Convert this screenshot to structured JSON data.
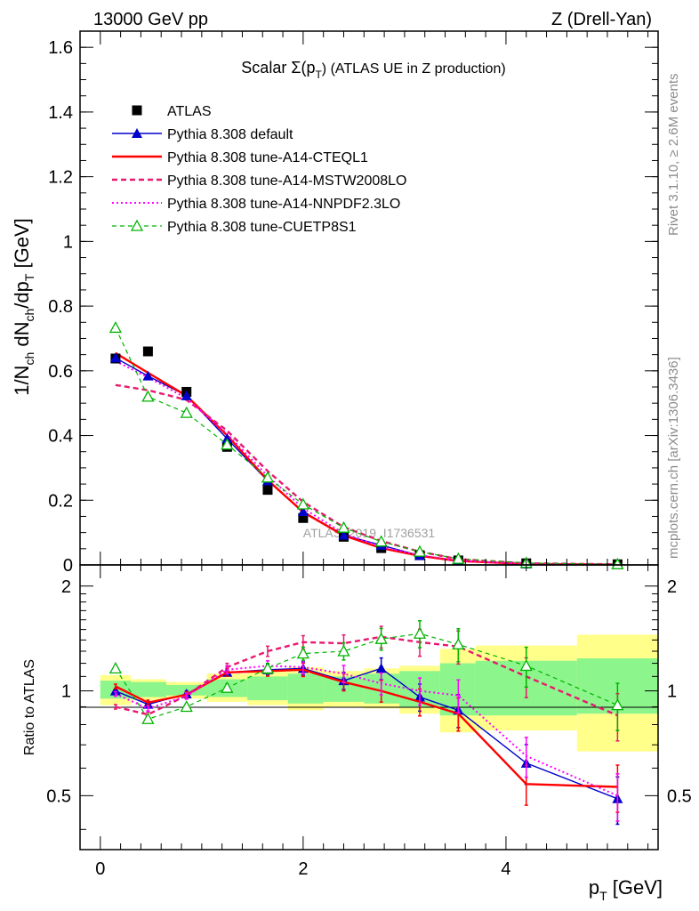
{
  "header": {
    "left": "13000 GeV pp",
    "right": "Z (Drell-Yan)"
  },
  "side_labels": {
    "rivet": "Rivet 3.1.10, ≥ 2.6M events",
    "mcplots": "mcplots.cern.ch [arXiv:1306.3436]"
  },
  "chart_data": [
    {
      "type": "scatter",
      "title": "Scalar Σ(p_T) (ATLAS UE in Z production)",
      "title_main": "Scalar Σ(p",
      "title_sub": "T",
      "title_tail": ") (ATLAS UE in Z production)",
      "watermark": "ATLAS_2019_I1736531",
      "xlabel": "p_T [GeV]",
      "ylabel": "1/N_ch dN_ch/dp_T [GeV]",
      "xlim": [
        -0.2,
        5.5
      ],
      "ylim": [
        0,
        1.65
      ],
      "yticks": [
        0,
        0.2,
        0.4,
        0.6,
        0.8,
        1,
        1.2,
        1.4,
        1.6
      ],
      "ytick_labels": [
        "0",
        "0.2",
        "0.4",
        "0.6",
        "0.8",
        "1",
        "1.2",
        "1.4",
        "1.6"
      ],
      "legend_position": "top-left",
      "x": [
        0.15,
        0.47,
        0.85,
        1.25,
        1.65,
        2.0,
        2.4,
        2.77,
        3.15,
        3.53,
        4.2,
        5.1
      ],
      "series": [
        {
          "name": "ATLAS",
          "style": "data",
          "color": "#000000",
          "values": [
            0.638,
            0.66,
            0.535,
            0.365,
            0.232,
            0.145,
            0.087,
            0.052,
            0.03,
            0.014,
            0.005,
            0.002
          ]
        },
        {
          "name": "Pythia 8.308 default",
          "style": "solid-triangle",
          "color": "#0000cc",
          "values": [
            0.64,
            0.584,
            0.523,
            0.39,
            0.26,
            0.165,
            0.092,
            0.061,
            0.029,
            0.012,
            0.003,
            0.001
          ]
        },
        {
          "name": "Pythia 8.308 tune-A14-CTEQL1",
          "style": "solid-thick",
          "color": "#ff0000",
          "values": [
            0.655,
            0.594,
            0.523,
            0.4,
            0.262,
            0.163,
            0.091,
            0.052,
            0.028,
            0.012,
            0.003,
            0.001
          ]
        },
        {
          "name": "Pythia 8.308 tune-A14-MSTW2008LO",
          "style": "dashed-thick",
          "color": "#e8196e",
          "values": [
            0.556,
            0.54,
            0.51,
            0.415,
            0.29,
            0.195,
            0.117,
            0.074,
            0.041,
            0.018,
            0.005,
            0.002
          ]
        },
        {
          "name": "Pythia 8.308 tune-A14-NNPDF2.3LO",
          "style": "dotted",
          "color": "#ff00ff",
          "values": [
            0.63,
            0.58,
            0.515,
            0.405,
            0.275,
            0.175,
            0.097,
            0.056,
            0.03,
            0.013,
            0.003,
            0.001
          ]
        },
        {
          "name": "Pythia 8.308 tune-CUETP8S1",
          "style": "dashed-open-triangle",
          "color": "#00b400",
          "values": [
            0.733,
            0.52,
            0.47,
            0.372,
            0.27,
            0.187,
            0.115,
            0.072,
            0.041,
            0.019,
            0.006,
            0.002
          ]
        }
      ]
    },
    {
      "type": "line",
      "xlabel": "p_T [GeV]",
      "ylabel": "Ratio to ATLAS",
      "xlim": [
        -0.2,
        5.5
      ],
      "ylim": [
        0.35,
        2.3
      ],
      "xticks": [
        0,
        2,
        4
      ],
      "xtick_labels": [
        "0",
        "2",
        "4"
      ],
      "yticks": [
        0.5,
        1,
        2
      ],
      "ytick_labels": [
        "0.5",
        "1",
        "2"
      ],
      "y_scale": "log",
      "bin_edges": [
        0,
        0.3,
        0.65,
        1.05,
        1.45,
        1.85,
        2.2,
        2.6,
        2.95,
        3.35,
        3.7,
        4.7,
        5.5
      ],
      "band_inner": [
        [
          0.95,
          1.07
        ],
        [
          0.96,
          1.06
        ],
        [
          0.97,
          1.04
        ],
        [
          0.96,
          1.08
        ],
        [
          0.94,
          1.1
        ],
        [
          0.92,
          1.12
        ],
        [
          0.93,
          1.1
        ],
        [
          0.92,
          1.12
        ],
        [
          0.9,
          1.14
        ],
        [
          0.85,
          1.2
        ],
        [
          0.85,
          1.22
        ],
        [
          0.86,
          1.24
        ]
      ],
      "band_outer": [
        [
          0.91,
          1.11
        ],
        [
          0.94,
          1.08
        ],
        [
          0.95,
          1.06
        ],
        [
          0.93,
          1.12
        ],
        [
          0.91,
          1.14
        ],
        [
          0.88,
          1.17
        ],
        [
          0.9,
          1.14
        ],
        [
          0.89,
          1.16
        ],
        [
          0.86,
          1.18
        ],
        [
          0.76,
          1.32
        ],
        [
          0.77,
          1.35
        ],
        [
          0.67,
          1.45
        ]
      ],
      "x": [
        0.15,
        0.47,
        0.85,
        1.25,
        1.65,
        2.0,
        2.4,
        2.77,
        3.15,
        3.53,
        4.2,
        5.1
      ],
      "series": [
        {
          "name": "Pythia 8.308 default",
          "style": "solid-triangle",
          "color": "#0000cc",
          "values": [
            1.0,
            0.915,
            0.98,
            1.13,
            1.15,
            1.16,
            1.07,
            1.16,
            0.96,
            0.88,
            0.62,
            0.49
          ]
        },
        {
          "name": "Pythia 8.308 tune-A14-CTEQL1",
          "style": "solid-thick",
          "color": "#ff0000",
          "values": [
            1.03,
            0.925,
            0.975,
            1.13,
            1.14,
            1.15,
            1.06,
            1.0,
            0.93,
            0.86,
            0.54,
            0.53
          ]
        },
        {
          "name": "Pythia 8.308 tune-A14-MSTW2008LO",
          "style": "dashed-thick",
          "color": "#e8196e",
          "values": [
            0.9,
            0.855,
            0.97,
            1.17,
            1.3,
            1.38,
            1.37,
            1.43,
            1.38,
            1.34,
            1.1,
            0.85
          ]
        },
        {
          "name": "Pythia 8.308 tune-A14-NNPDF2.3LO",
          "style": "dotted",
          "color": "#ff00ff",
          "values": [
            0.98,
            0.89,
            0.965,
            1.15,
            1.18,
            1.17,
            1.12,
            1.05,
            1.0,
            0.97,
            0.65,
            0.5
          ]
        },
        {
          "name": "Pythia 8.308 tune-CUETP8S1",
          "style": "dashed-open-triangle",
          "color": "#00b400",
          "values": [
            1.16,
            0.83,
            0.9,
            1.02,
            1.16,
            1.28,
            1.3,
            1.41,
            1.46,
            1.36,
            1.18,
            0.91
          ]
        }
      ]
    }
  ]
}
